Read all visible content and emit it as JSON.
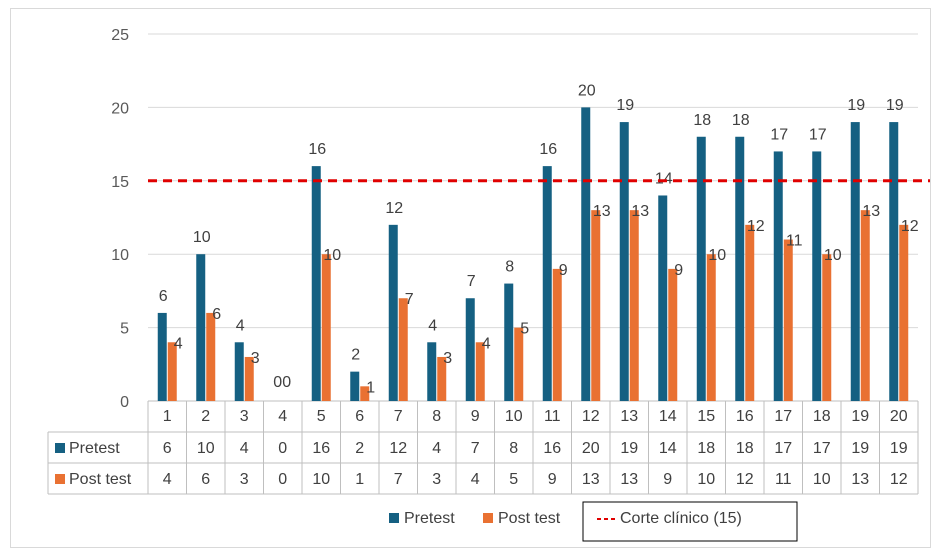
{
  "chart_data": {
    "type": "bar",
    "categories": [
      "1",
      "2",
      "3",
      "4",
      "5",
      "6",
      "7",
      "8",
      "9",
      "10",
      "11",
      "12",
      "13",
      "14",
      "15",
      "16",
      "17",
      "18",
      "19",
      "20"
    ],
    "series": [
      {
        "name": "Pretest",
        "color": "#156082",
        "values": [
          6,
          10,
          4,
          0,
          16,
          2,
          12,
          4,
          7,
          8,
          16,
          20,
          19,
          14,
          18,
          18,
          17,
          17,
          19,
          19
        ]
      },
      {
        "name": "Post test",
        "color": "#e97132",
        "values": [
          4,
          6,
          3,
          0,
          10,
          1,
          7,
          3,
          4,
          5,
          9,
          13,
          13,
          9,
          10,
          12,
          11,
          10,
          13,
          12
        ]
      }
    ],
    "reference_line": {
      "name": "Corte clínico (15)",
      "value": 15,
      "color": "#e00000",
      "style": "dashed"
    },
    "yticks": [
      "0",
      "5",
      "10",
      "15",
      "20",
      "25"
    ],
    "ylim": [
      0,
      25
    ],
    "title": "",
    "xlabel": "",
    "ylabel": "",
    "grid": true,
    "data_table": true,
    "legend_position": "bottom"
  }
}
